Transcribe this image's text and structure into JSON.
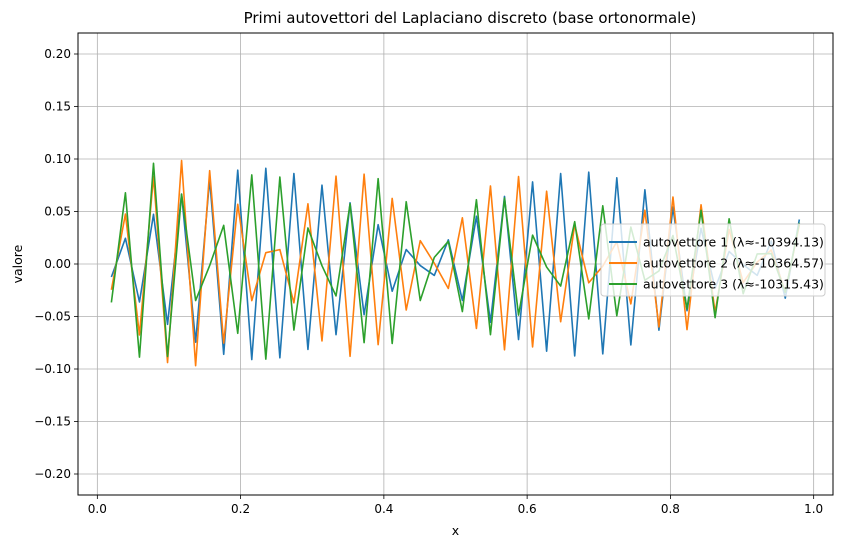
{
  "chart_data": {
    "type": "line",
    "title": "Primi autovettori del Laplaciano discreto (base ortonormale)",
    "xlabel": "x",
    "ylabel": "valore",
    "xlim": [
      -0.027,
      1.027
    ],
    "ylim": [
      -0.22,
      0.22
    ],
    "xticks": [
      0.0,
      0.2,
      0.4,
      0.6,
      0.8,
      1.0
    ],
    "xtick_labels": [
      "0.0",
      "0.2",
      "0.4",
      "0.6",
      "0.8",
      "1.0"
    ],
    "yticks": [
      0.2,
      0.15,
      0.1,
      0.05,
      0.0,
      -0.05,
      -0.1,
      -0.15,
      -0.2
    ],
    "ytick_labels": [
      "0.20",
      "0.15",
      "0.10",
      "0.05",
      "0.00",
      "−0.05",
      "−0.10",
      "−0.15",
      "−0.20"
    ],
    "grid": true,
    "legend_position": "center-right",
    "n_points": 50,
    "x_start": 0.0196,
    "x_step": 0.0196,
    "series": [
      {
        "name": "autovettore 1 (λ≈-10394.13)",
        "color": "#1f77b4",
        "values": [
          -0.0124,
          0.0245,
          -0.0362,
          0.0473,
          -0.0575,
          0.0666,
          -0.0745,
          0.081,
          -0.086,
          0.0893,
          -0.091,
          0.0911,
          -0.0894,
          0.0862,
          -0.0814,
          0.0751,
          -0.0673,
          0.0583,
          -0.0483,
          0.0375,
          -0.0259,
          0.0138,
          -0.0015,
          -0.0109,
          0.023,
          -0.0347,
          0.0455,
          -0.0555,
          0.0644,
          -0.072,
          0.0782,
          -0.083,
          0.0861,
          -0.0876,
          0.0874,
          -0.0856,
          0.0821,
          -0.0771,
          0.0707,
          -0.063,
          0.0542,
          -0.0445,
          0.034,
          -0.0231,
          0.0119,
          -0.0006,
          -0.0108,
          0.0219,
          -0.0325,
          0.0424
        ]
      },
      {
        "name": "autovettore 2 (λ≈-10364.57)",
        "color": "#ff7f0e",
        "values": [
          -0.0246,
          0.0476,
          -0.0676,
          0.0834,
          -0.0939,
          0.0985,
          -0.0968,
          0.0889,
          -0.0753,
          0.0569,
          -0.0349,
          0.0108,
          0.0137,
          -0.037,
          0.0573,
          -0.0733,
          0.0837,
          -0.0879,
          0.0855,
          -0.0768,
          0.0625,
          -0.0438,
          0.0222,
          0.0007,
          -0.0233,
          0.044,
          -0.0614,
          0.0743,
          -0.0817,
          0.0833,
          -0.079,
          0.0693,
          -0.055,
          0.0374,
          -0.0179,
          -0.002,
          0.0212,
          -0.038,
          0.0512,
          -0.06,
          0.0638,
          -0.0625,
          0.0564,
          -0.0462,
          0.0329,
          -0.0177,
          0.0018,
          0.0133,
          -0.0267,
          0.0371
        ]
      },
      {
        "name": "autovettore 3 (λ≈-10315.43)",
        "color": "#2ca02c",
        "values": [
          -0.0366,
          0.0678,
          -0.0887,
          0.0959,
          -0.0881,
          0.0665,
          -0.0348,
          -0.0015,
          0.0368,
          -0.066,
          0.0848,
          -0.0906,
          0.0828,
          -0.0629,
          0.0343,
          -0.0016,
          -0.0304,
          0.0572,
          -0.0749,
          0.0813,
          -0.0757,
          0.0593,
          -0.0348,
          0.0063,
          0.0216,
          -0.0453,
          0.0612,
          -0.0673,
          0.0628,
          -0.0487,
          0.0275,
          -0.0029,
          -0.021,
          0.0403,
          -0.0523,
          0.0554,
          -0.0493,
          0.0352,
          -0.0155,
          -0.0066,
          0.0271,
          -0.0427,
          0.0511,
          -0.0511,
          0.043,
          -0.0283,
          0.0096,
          0.0099,
          -0.0271,
          0.0393
        ]
      }
    ]
  }
}
